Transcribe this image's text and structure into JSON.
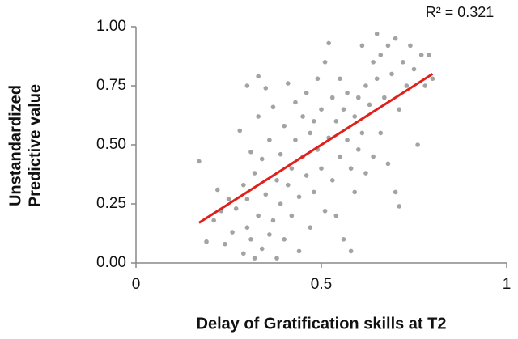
{
  "chart_data": {
    "type": "scatter",
    "xlabel": "Delay of Gratification skills at T2",
    "ylabel": [
      "Unstandardized",
      "Predictive value"
    ],
    "annotation": "R² = 0.321",
    "xlim": [
      0,
      1
    ],
    "xticks": [
      0,
      0.5,
      1
    ],
    "ylim": [
      0,
      1
    ],
    "yticks": [
      {
        "value": 0,
        "label": "0.00"
      },
      {
        "value": 0.25,
        "label": "0.25"
      },
      {
        "value": 0.5,
        "label": "0.50"
      },
      {
        "value": 0.75,
        "label": "0.75"
      },
      {
        "value": 1,
        "label": "1.00"
      }
    ],
    "grid": false,
    "series": [
      {
        "color": "#a3a3a3",
        "x": [
          0.17,
          0.19,
          0.21,
          0.22,
          0.23,
          0.24,
          0.25,
          0.26,
          0.27,
          0.28,
          0.29,
          0.29,
          0.3,
          0.3,
          0.3,
          0.31,
          0.31,
          0.32,
          0.32,
          0.33,
          0.33,
          0.33,
          0.34,
          0.34,
          0.35,
          0.35,
          0.36,
          0.36,
          0.37,
          0.37,
          0.38,
          0.38,
          0.39,
          0.39,
          0.4,
          0.4,
          0.41,
          0.41,
          0.42,
          0.42,
          0.43,
          0.43,
          0.44,
          0.44,
          0.45,
          0.45,
          0.46,
          0.46,
          0.47,
          0.47,
          0.48,
          0.48,
          0.49,
          0.49,
          0.5,
          0.5,
          0.51,
          0.51,
          0.52,
          0.52,
          0.53,
          0.53,
          0.54,
          0.54,
          0.55,
          0.55,
          0.56,
          0.56,
          0.57,
          0.57,
          0.58,
          0.58,
          0.59,
          0.59,
          0.6,
          0.6,
          0.61,
          0.61,
          0.62,
          0.62,
          0.63,
          0.64,
          0.64,
          0.65,
          0.65,
          0.66,
          0.66,
          0.67,
          0.68,
          0.68,
          0.69,
          0.7,
          0.7,
          0.71,
          0.71,
          0.72,
          0.73,
          0.74,
          0.75,
          0.76,
          0.77,
          0.78,
          0.79,
          0.8
        ],
        "values": [
          0.43,
          0.09,
          0.18,
          0.31,
          0.22,
          0.08,
          0.27,
          0.13,
          0.23,
          0.56,
          0.04,
          0.33,
          0.15,
          0.75,
          0.27,
          0.1,
          0.47,
          0.02,
          0.38,
          0.79,
          0.2,
          0.62,
          0.06,
          0.44,
          0.29,
          0.74,
          0.12,
          0.52,
          0.18,
          0.66,
          0.35,
          0.02,
          0.46,
          0.25,
          0.58,
          0.1,
          0.76,
          0.33,
          0.4,
          0.2,
          0.52,
          0.68,
          0.28,
          0.05,
          0.62,
          0.45,
          0.72,
          0.37,
          0.15,
          0.55,
          0.6,
          0.3,
          0.48,
          0.78,
          0.4,
          0.65,
          0.22,
          0.85,
          0.53,
          0.93,
          0.7,
          0.35,
          0.6,
          0.2,
          0.45,
          0.78,
          0.65,
          0.1,
          0.52,
          0.72,
          0.4,
          0.05,
          0.62,
          0.3,
          0.7,
          0.48,
          0.55,
          0.92,
          0.75,
          0.38,
          0.67,
          0.85,
          0.45,
          0.78,
          0.97,
          0.55,
          0.88,
          0.7,
          0.92,
          0.42,
          0.8,
          0.3,
          0.95,
          0.65,
          0.24,
          0.85,
          0.75,
          0.92,
          0.82,
          0.5,
          0.88,
          0.75,
          0.88,
          0.78
        ]
      }
    ],
    "trendline": {
      "color": "#e0201b",
      "x": [
        0.17,
        0.8
      ],
      "values": [
        0.17,
        0.8
      ]
    }
  }
}
